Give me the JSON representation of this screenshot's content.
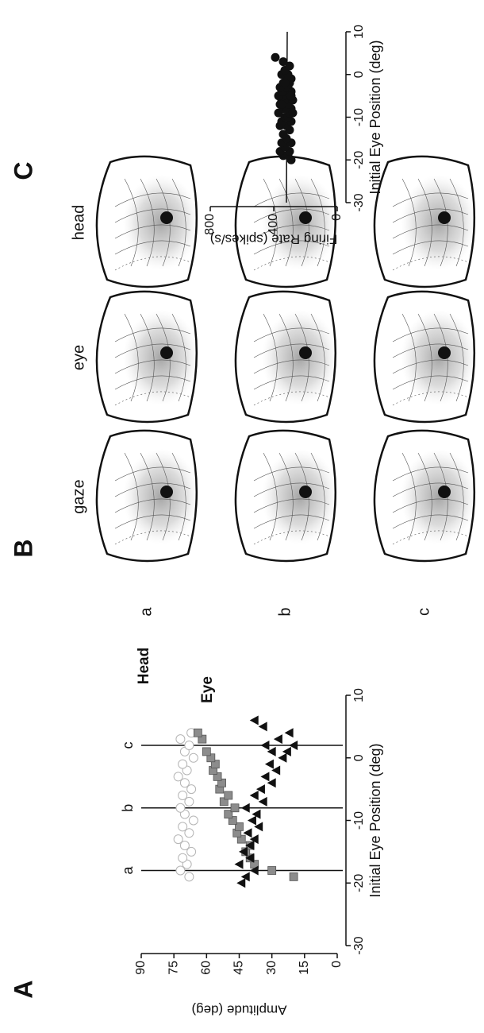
{
  "chart_data": [
    {
      "type": "scatter",
      "panel_label": "A",
      "xlabel": "Initial Eye Position (deg)",
      "ylabel": "Amplitude (deg)",
      "xlim": [
        -30,
        10
      ],
      "xticks": [
        -30,
        -20,
        -10,
        0,
        10
      ],
      "ylim": [
        0,
        90
      ],
      "yticks": [
        0,
        15,
        30,
        45,
        60,
        75,
        90
      ],
      "vlines": [
        {
          "x": -18,
          "label": "a"
        },
        {
          "x": -8,
          "label": "b"
        },
        {
          "x": 2,
          "label": "c"
        }
      ],
      "series": [
        {
          "marker": "circle",
          "color": "#b5b5b5",
          "x": [
            -19,
            -18,
            -17,
            -16,
            -15,
            -14,
            -13,
            -12,
            -11,
            -10,
            -9,
            -8,
            -7,
            -6,
            -5,
            -4,
            -3,
            -2,
            -1,
            0,
            1,
            2,
            3,
            4
          ],
          "y": [
            68,
            72,
            69,
            71,
            67,
            70,
            73,
            68,
            71,
            66,
            70,
            72,
            68,
            71,
            67,
            70,
            73,
            69,
            71,
            66,
            70,
            68,
            72,
            67
          ]
        },
        {
          "name": "Head",
          "marker": "square",
          "color": "#8c8c8c",
          "x": [
            -19,
            -18,
            -17,
            -16,
            -15,
            -14,
            -13,
            -12,
            -11,
            -10,
            -9,
            -8,
            -7,
            -6,
            -5,
            -4,
            -3,
            -2,
            -1,
            0,
            1,
            3,
            4
          ],
          "y": [
            20,
            30,
            38,
            40,
            42,
            40,
            44,
            46,
            45,
            48,
            50,
            47,
            52,
            50,
            54,
            53,
            55,
            57,
            56,
            58,
            60,
            62,
            64
          ]
        },
        {
          "name": "Eye",
          "marker": "triangle",
          "color": "#111111",
          "x": [
            -20,
            -19,
            -18,
            -17,
            -16,
            -15,
            -14,
            -13,
            -12,
            -11,
            -10,
            -9,
            -8,
            -7,
            -6,
            -5,
            -4,
            -3,
            -2,
            -1,
            0,
            1,
            2,
            3,
            4,
            5,
            6,
            2,
            1
          ],
          "y": [
            44,
            42,
            38,
            45,
            40,
            43,
            40,
            38,
            41,
            36,
            39,
            37,
            42,
            34,
            38,
            35,
            30,
            33,
            28,
            31,
            25,
            30,
            33,
            27,
            22,
            34,
            38,
            20,
            23
          ]
        }
      ]
    },
    {
      "type": "image-grid",
      "panel_label": "B",
      "columns": [
        "gaze",
        "eye",
        "head"
      ],
      "rows": [
        "a",
        "b",
        "c"
      ]
    },
    {
      "type": "scatter",
      "panel_label": "C",
      "xlabel": "Initial Eye Position (deg)",
      "ylabel": "Firing Rate (spikes/s)",
      "xlim": [
        -30,
        10
      ],
      "xticks": [
        -30,
        -20,
        -10,
        0,
        10
      ],
      "ylim": [
        0,
        800
      ],
      "yticks": [
        0,
        400,
        800
      ],
      "fit": {
        "x": [
          -30,
          10
        ],
        "y": [
          320,
          315
        ]
      },
      "series": [
        {
          "marker": "dot",
          "color": "#111111",
          "x": [
            -20,
            -19,
            -19,
            -18,
            -18,
            -17,
            -16,
            -16,
            -15,
            -14,
            -13,
            -12,
            -12,
            -11,
            -11,
            -10,
            -10,
            -9,
            -9,
            -8,
            -8,
            -8,
            -7,
            -7,
            -6,
            -6,
            -6,
            -5,
            -5,
            -5,
            -4,
            -4,
            -4,
            -3,
            -3,
            -3,
            -2,
            -2,
            -1,
            -1,
            0,
            0,
            1,
            2,
            3,
            4,
            -9,
            -7,
            -5,
            -2
          ],
          "y": [
            290,
            340,
            310,
            360,
            300,
            330,
            350,
            290,
            320,
            340,
            300,
            360,
            320,
            290,
            350,
            330,
            310,
            370,
            300,
            340,
            290,
            320,
            360,
            310,
            330,
            280,
            350,
            300,
            340,
            370,
            320,
            290,
            350,
            310,
            330,
            360,
            300,
            340,
            320,
            290,
            350,
            310,
            330,
            300,
            340,
            390,
            280,
            350,
            290,
            330
          ]
        }
      ]
    }
  ]
}
